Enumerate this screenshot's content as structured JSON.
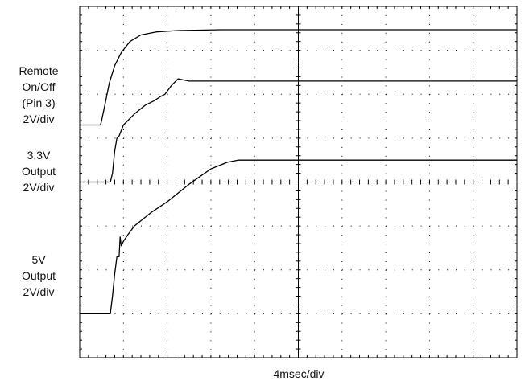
{
  "chart_data": {
    "type": "line",
    "title": "",
    "xlabel": "4msec/div",
    "ylabel": "",
    "grid": true,
    "grid_divisions": {
      "x": 10,
      "y": 8
    },
    "xlim": [
      0,
      40
    ],
    "x_unit": "msec",
    "series": [
      {
        "name": "Remote On/Off (Pin 3)",
        "label_lines": [
          "Remote",
          "On/Off",
          "(Pin 3)",
          "2V/div"
        ],
        "baseline_div": 5.3,
        "x": [
          0,
          1.9,
          2.0,
          2.3,
          2.7,
          3.2,
          3.8,
          4.6,
          5.6,
          7.0,
          9.0,
          13.0,
          20.0,
          30.0,
          40.0
        ],
        "y": [
          0,
          0,
          0.1,
          0.45,
          0.95,
          1.35,
          1.65,
          1.9,
          2.05,
          2.12,
          2.15,
          2.17,
          2.17,
          2.17,
          2.17
        ]
      },
      {
        "name": "3.3V Output",
        "label_lines": [
          "3.3V",
          "Output",
          "2V/div"
        ],
        "baseline_div": 4.0,
        "x": [
          0,
          2.8,
          3.0,
          3.2,
          3.4,
          3.6,
          4.0,
          5.0,
          6.0,
          6.8,
          7.4,
          7.8,
          8.4,
          9.0,
          10.0,
          12.0,
          16.0,
          25.0,
          40.0
        ],
        "y": [
          0,
          0,
          0.2,
          0.7,
          1.0,
          1.05,
          1.3,
          1.55,
          1.75,
          1.85,
          1.95,
          2.0,
          2.2,
          2.35,
          2.3,
          2.3,
          2.3,
          2.3,
          2.3
        ]
      },
      {
        "name": "5V Output",
        "label_lines": [
          "5V",
          "Output",
          "2V/div"
        ],
        "baseline_div": 1.0,
        "x": [
          0,
          2.8,
          3.0,
          3.2,
          3.4,
          3.6,
          3.7,
          3.8,
          4.0,
          4.4,
          5.0,
          6.5,
          8.0,
          10.0,
          12.0,
          13.5,
          14.5,
          18.0,
          30.0,
          40.0
        ],
        "y": [
          0,
          0,
          0.4,
          0.9,
          1.3,
          1.3,
          1.75,
          1.55,
          1.65,
          1.8,
          2.0,
          2.3,
          2.55,
          2.95,
          3.3,
          3.45,
          3.5,
          3.5,
          3.5,
          3.5
        ]
      }
    ]
  }
}
